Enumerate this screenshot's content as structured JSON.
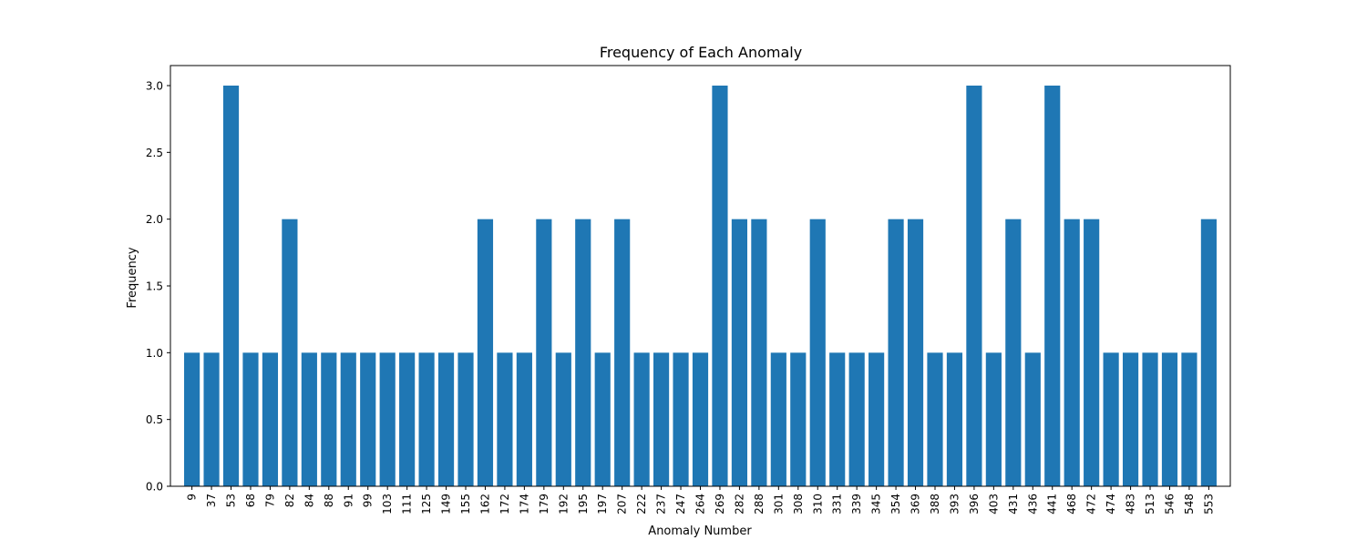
{
  "chart_data": {
    "type": "bar",
    "title": "Frequency of Each Anomaly",
    "xlabel": "Anomaly Number",
    "ylabel": "Frequency",
    "ylim": [
      0,
      3.15
    ],
    "yticks": [
      "0.0",
      "0.5",
      "1.0",
      "1.5",
      "2.0",
      "2.5",
      "3.0"
    ],
    "grid": false,
    "bar_color": "#1f77b4",
    "categories": [
      "9",
      "37",
      "53",
      "68",
      "79",
      "82",
      "84",
      "88",
      "91",
      "99",
      "103",
      "111",
      "125",
      "149",
      "155",
      "162",
      "172",
      "174",
      "179",
      "192",
      "195",
      "197",
      "207",
      "222",
      "237",
      "247",
      "264",
      "269",
      "282",
      "288",
      "301",
      "308",
      "310",
      "331",
      "339",
      "345",
      "354",
      "369",
      "388",
      "393",
      "396",
      "403",
      "431",
      "436",
      "441",
      "468",
      "472",
      "474",
      "483",
      "513",
      "546",
      "548",
      "553"
    ],
    "values": [
      1,
      1,
      3,
      1,
      1,
      2,
      1,
      1,
      1,
      1,
      1,
      1,
      1,
      1,
      1,
      2,
      1,
      1,
      2,
      1,
      2,
      1,
      2,
      1,
      1,
      1,
      1,
      3,
      2,
      2,
      1,
      1,
      2,
      1,
      1,
      1,
      2,
      2,
      1,
      1,
      3,
      1,
      2,
      1,
      3,
      2,
      2,
      1,
      1,
      1,
      1,
      1,
      2
    ]
  }
}
